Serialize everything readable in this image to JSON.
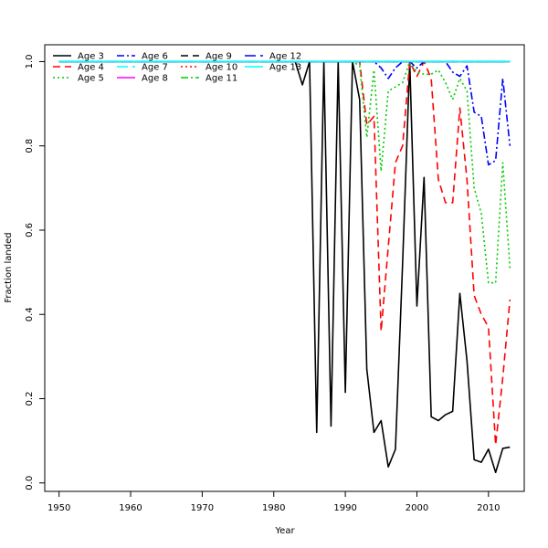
{
  "chart_data": {
    "type": "line",
    "title": "",
    "xlabel": "Year",
    "ylabel": "Fraction landed",
    "xlim": [
      1948,
      2015
    ],
    "ylim": [
      -0.02,
      1.04
    ],
    "xticks": [
      1950,
      1960,
      1970,
      1980,
      1990,
      2000,
      2010
    ],
    "yticks": [
      0.0,
      0.2,
      0.4,
      0.6,
      0.8,
      1.0
    ],
    "xtick_labels": [
      "1950",
      "1960",
      "1970",
      "1980",
      "1990",
      "2000",
      "2010"
    ],
    "ytick_labels": [
      "0.0",
      "0.2",
      "0.4",
      "0.6",
      "0.8",
      "1.0"
    ],
    "grid": false,
    "legend_position": "top-left",
    "x": [
      1950,
      1951,
      1952,
      1953,
      1954,
      1955,
      1956,
      1957,
      1958,
      1959,
      1960,
      1961,
      1962,
      1963,
      1964,
      1965,
      1966,
      1967,
      1968,
      1969,
      1970,
      1971,
      1972,
      1973,
      1974,
      1975,
      1976,
      1977,
      1978,
      1979,
      1980,
      1981,
      1982,
      1983,
      1984,
      1985,
      1986,
      1987,
      1988,
      1989,
      1990,
      1991,
      1992,
      1993,
      1994,
      1995,
      1996,
      1997,
      1998,
      1999,
      2000,
      2001,
      2002,
      2003,
      2004,
      2005,
      2006,
      2007,
      2008,
      2009,
      2010,
      2011,
      2012,
      2013
    ],
    "series": [
      {
        "name": "Age 3",
        "color": "#000000",
        "dash": "solid",
        "values": [
          1,
          1,
          1,
          1,
          1,
          1,
          1,
          1,
          1,
          1,
          1,
          1,
          1,
          1,
          1,
          1,
          1,
          1,
          1,
          1,
          1,
          1,
          1,
          1,
          1,
          1,
          1,
          1,
          1,
          1,
          1,
          1,
          1,
          1,
          0.945,
          1.0,
          0.12,
          1.0,
          0.135,
          1.0,
          0.215,
          1.0,
          0.91,
          0.27,
          0.12,
          0.148,
          0.038,
          0.08,
          0.52,
          1.0,
          0.42,
          0.725,
          0.157,
          0.148,
          0.162,
          0.17,
          0.45,
          0.29,
          0.055,
          0.049,
          0.08,
          0.025,
          0.082,
          0.085
        ]
      },
      {
        "name": "Age 4",
        "color": "#ff0000",
        "dash": "dashed",
        "values": [
          1,
          1,
          1,
          1,
          1,
          1,
          1,
          1,
          1,
          1,
          1,
          1,
          1,
          1,
          1,
          1,
          1,
          1,
          1,
          1,
          1,
          1,
          1,
          1,
          1,
          1,
          1,
          1,
          1,
          1,
          1,
          1,
          1,
          1,
          1,
          1,
          1,
          1,
          1,
          1,
          1,
          1,
          1,
          0.85,
          0.87,
          0.36,
          0.56,
          0.76,
          0.8,
          1.0,
          0.965,
          1.0,
          0.96,
          0.72,
          0.665,
          0.665,
          0.89,
          0.72,
          0.445,
          0.4,
          0.37,
          0.09,
          0.25,
          0.435
        ]
      },
      {
        "name": "Age 5",
        "color": "#00cd00",
        "dash": "dotted",
        "values": [
          1,
          1,
          1,
          1,
          1,
          1,
          1,
          1,
          1,
          1,
          1,
          1,
          1,
          1,
          1,
          1,
          1,
          1,
          1,
          1,
          1,
          1,
          1,
          1,
          1,
          1,
          1,
          1,
          1,
          1,
          1,
          1,
          1,
          1,
          1,
          1,
          1,
          1,
          1,
          1,
          1,
          1,
          0.99,
          0.82,
          0.98,
          0.74,
          0.93,
          0.94,
          0.95,
          1.0,
          0.975,
          0.97,
          0.97,
          0.98,
          0.95,
          0.91,
          0.96,
          0.93,
          0.7,
          0.64,
          0.475,
          0.475,
          0.76,
          0.51
        ]
      },
      {
        "name": "Age 6",
        "color": "#0000ff",
        "dash": "dashdot",
        "values": [
          1,
          1,
          1,
          1,
          1,
          1,
          1,
          1,
          1,
          1,
          1,
          1,
          1,
          1,
          1,
          1,
          1,
          1,
          1,
          1,
          1,
          1,
          1,
          1,
          1,
          1,
          1,
          1,
          1,
          1,
          1,
          1,
          1,
          1,
          1,
          1,
          1,
          1,
          1,
          1,
          1,
          1,
          1,
          1,
          1,
          0.985,
          0.96,
          0.985,
          1.0,
          1.0,
          0.985,
          1.0,
          1.0,
          1.0,
          1.0,
          0.975,
          0.965,
          0.99,
          0.88,
          0.87,
          0.755,
          0.765,
          0.96,
          0.8
        ]
      },
      {
        "name": "Age 7",
        "color": "#00ffff",
        "dash": "longdash",
        "values": [
          1,
          1,
          1,
          1,
          1,
          1,
          1,
          1,
          1,
          1,
          1,
          1,
          1,
          1,
          1,
          1,
          1,
          1,
          1,
          1,
          1,
          1,
          1,
          1,
          1,
          1,
          1,
          1,
          1,
          1,
          1,
          1,
          1,
          1,
          1,
          1,
          1,
          1,
          1,
          1,
          1,
          1,
          1,
          1,
          1,
          1,
          1,
          1,
          1,
          1,
          1,
          1,
          1,
          1,
          1,
          1,
          1,
          1,
          1,
          1,
          1,
          1,
          1,
          1
        ]
      },
      {
        "name": "Age 8",
        "color": "#ff00ff",
        "dash": "solid",
        "values": [
          1,
          1,
          1,
          1,
          1,
          1,
          1,
          1,
          1,
          1,
          1,
          1,
          1,
          1,
          1,
          1,
          1,
          1,
          1,
          1,
          1,
          1,
          1,
          1,
          1,
          1,
          1,
          1,
          1,
          1,
          1,
          1,
          1,
          1,
          1,
          1,
          1,
          1,
          1,
          1,
          1,
          1,
          1,
          1,
          1,
          1,
          1,
          1,
          1,
          1,
          1,
          1,
          1,
          1,
          1,
          1,
          1,
          1,
          1,
          1,
          1,
          1,
          1,
          1
        ]
      },
      {
        "name": "Age 9",
        "color": "#000000",
        "dash": "dashed",
        "values": [
          1,
          1,
          1,
          1,
          1,
          1,
          1,
          1,
          1,
          1,
          1,
          1,
          1,
          1,
          1,
          1,
          1,
          1,
          1,
          1,
          1,
          1,
          1,
          1,
          1,
          1,
          1,
          1,
          1,
          1,
          1,
          1,
          1,
          1,
          1,
          1,
          1,
          1,
          1,
          1,
          1,
          1,
          1,
          1,
          1,
          1,
          1,
          1,
          1,
          1,
          1,
          1,
          1,
          1,
          1,
          1,
          1,
          1,
          1,
          1,
          1,
          1,
          1,
          1
        ]
      },
      {
        "name": "Age 10",
        "color": "#ff0000",
        "dash": "dotted",
        "values": [
          1,
          1,
          1,
          1,
          1,
          1,
          1,
          1,
          1,
          1,
          1,
          1,
          1,
          1,
          1,
          1,
          1,
          1,
          1,
          1,
          1,
          1,
          1,
          1,
          1,
          1,
          1,
          1,
          1,
          1,
          1,
          1,
          1,
          1,
          1,
          1,
          1,
          1,
          1,
          1,
          1,
          1,
          1,
          1,
          1,
          1,
          1,
          1,
          1,
          1,
          1,
          1,
          1,
          1,
          1,
          1,
          1,
          1,
          1,
          1,
          1,
          1,
          1,
          1
        ]
      },
      {
        "name": "Age 11",
        "color": "#00cd00",
        "dash": "dashdot",
        "values": [
          1,
          1,
          1,
          1,
          1,
          1,
          1,
          1,
          1,
          1,
          1,
          1,
          1,
          1,
          1,
          1,
          1,
          1,
          1,
          1,
          1,
          1,
          1,
          1,
          1,
          1,
          1,
          1,
          1,
          1,
          1,
          1,
          1,
          1,
          1,
          1,
          1,
          1,
          1,
          1,
          1,
          1,
          1,
          1,
          1,
          1,
          1,
          1,
          1,
          1,
          1,
          1,
          1,
          1,
          1,
          1,
          1,
          1,
          1,
          1,
          1,
          1,
          1,
          1
        ]
      },
      {
        "name": "Age 12",
        "color": "#0000ff",
        "dash": "longdash",
        "values": [
          1,
          1,
          1,
          1,
          1,
          1,
          1,
          1,
          1,
          1,
          1,
          1,
          1,
          1,
          1,
          1,
          1,
          1,
          1,
          1,
          1,
          1,
          1,
          1,
          1,
          1,
          1,
          1,
          1,
          1,
          1,
          1,
          1,
          1,
          1,
          1,
          1,
          1,
          1,
          1,
          1,
          1,
          1,
          1,
          1,
          1,
          1,
          1,
          1,
          1,
          1,
          1,
          1,
          1,
          1,
          1,
          1,
          1,
          1,
          1,
          1,
          1,
          1,
          1
        ]
      },
      {
        "name": "Age 13",
        "color": "#00ffff",
        "dash": "solid",
        "values": [
          1,
          1,
          1,
          1,
          1,
          1,
          1,
          1,
          1,
          1,
          1,
          1,
          1,
          1,
          1,
          1,
          1,
          1,
          1,
          1,
          1,
          1,
          1,
          1,
          1,
          1,
          1,
          1,
          1,
          1,
          1,
          1,
          1,
          1,
          1,
          1,
          1,
          1,
          1,
          1,
          1,
          1,
          1,
          1,
          1,
          1,
          1,
          1,
          1,
          1,
          1,
          1,
          1,
          1,
          1,
          1,
          1,
          1,
          1,
          1,
          1,
          1,
          1,
          1
        ]
      }
    ]
  }
}
